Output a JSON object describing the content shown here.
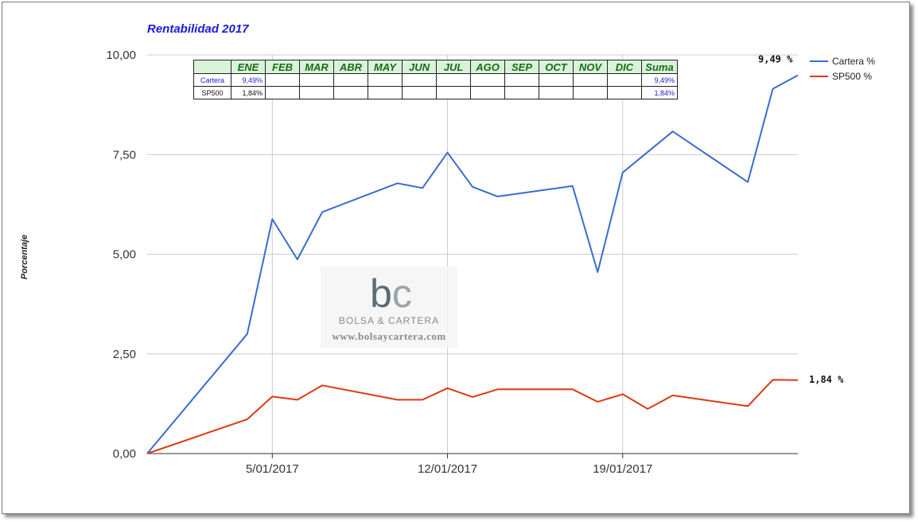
{
  "chart_data": {
    "type": "line",
    "title": "Rentabilidad 2017",
    "ylabel": "Porcentaje",
    "xlabel": "",
    "ylim": [
      0,
      10
    ],
    "y_ticks": [
      "0,00",
      "2,50",
      "5,00",
      "7,50",
      "10,00"
    ],
    "y_tick_values": [
      0,
      2.5,
      5,
      7.5,
      10
    ],
    "x_tick_labels": [
      "5/01/2017",
      "12/01/2017",
      "19/01/2017"
    ],
    "x_tick_days": [
      5,
      12,
      19
    ],
    "x_range_days": [
      0,
      26
    ],
    "grid": true,
    "legend_position": "top-right",
    "series": [
      {
        "name": "Cartera %",
        "color": "#3a6bd0",
        "end_label": "9,49 %",
        "points": [
          [
            0,
            0
          ],
          [
            4,
            3.0
          ],
          [
            5,
            5.88
          ],
          [
            6,
            4.87
          ],
          [
            7,
            6.06
          ],
          [
            10,
            6.78
          ],
          [
            11,
            6.66
          ],
          [
            12,
            7.55
          ],
          [
            13,
            6.69
          ],
          [
            14,
            6.45
          ],
          [
            17,
            6.71
          ],
          [
            18,
            4.55
          ],
          [
            19,
            7.05
          ],
          [
            21,
            8.08
          ],
          [
            24,
            6.81
          ],
          [
            25,
            9.15
          ],
          [
            26,
            9.49
          ]
        ]
      },
      {
        "name": "SP500 %",
        "color": "#dc3912",
        "end_label": "1,84 %",
        "points": [
          [
            0,
            0
          ],
          [
            4,
            0.86
          ],
          [
            5,
            1.43
          ],
          [
            6,
            1.35
          ],
          [
            7,
            1.71
          ],
          [
            10,
            1.35
          ],
          [
            11,
            1.35
          ],
          [
            12,
            1.64
          ],
          [
            13,
            1.42
          ],
          [
            14,
            1.61
          ],
          [
            17,
            1.61
          ],
          [
            18,
            1.3
          ],
          [
            19,
            1.49
          ],
          [
            20,
            1.12
          ],
          [
            21,
            1.46
          ],
          [
            24,
            1.19
          ],
          [
            25,
            1.85
          ],
          [
            26,
            1.84
          ]
        ]
      }
    ]
  },
  "summary_table": {
    "months": [
      "ENE",
      "FEB",
      "MAR",
      "ABR",
      "MAY",
      "JUN",
      "JUL",
      "AGO",
      "SEP",
      "OCT",
      "NOV",
      "DIC"
    ],
    "sum_label": "Suma",
    "rows": [
      {
        "name": "Cartera",
        "values": [
          "9,49%",
          "",
          "",
          "",
          "",
          "",
          "",
          "",
          "",
          "",
          "",
          ""
        ],
        "sum": "9,49%"
      },
      {
        "name": "SP500",
        "values": [
          "1,84%",
          "",
          "",
          "",
          "",
          "",
          "",
          "",
          "",
          "",
          "",
          ""
        ],
        "sum": "1,84%"
      }
    ]
  },
  "watermark": {
    "logo": "bc",
    "brand": "BOLSA & CARTERA",
    "url": "www.bolsaycartera.com"
  },
  "colors": {
    "title": "#1a1adc",
    "grid": "#cccccc",
    "axis": "#333333",
    "table_header_bg": "#d9f3d9",
    "table_header_text": "#1a6a1a",
    "table_value_text": "#1a1adc"
  }
}
